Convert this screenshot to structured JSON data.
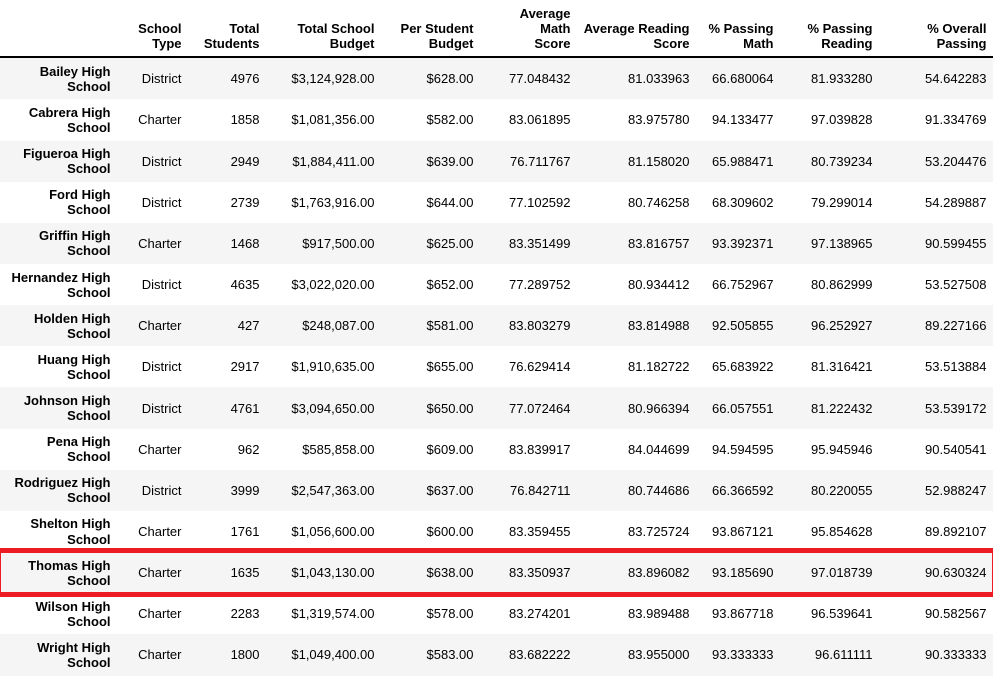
{
  "table": {
    "corner_label": "",
    "highlight_color": "#ed1c24",
    "stripe_color": "#f5f5f5",
    "columns": [
      "School\nType",
      "Total\nStudents",
      "Total School\nBudget",
      "Per Student\nBudget",
      "Average Math\nScore",
      "Average Reading\nScore",
      "% Passing\nMath",
      "% Passing\nReading",
      "% Overall\nPassing"
    ],
    "rows": [
      {
        "name": "Bailey High\nSchool",
        "highlighted": false,
        "values": [
          "District",
          "4976",
          "$3,124,928.00",
          "$628.00",
          "77.048432",
          "81.033963",
          "66.680064",
          "81.933280",
          "54.642283"
        ]
      },
      {
        "name": "Cabrera High\nSchool",
        "highlighted": false,
        "values": [
          "Charter",
          "1858",
          "$1,081,356.00",
          "$582.00",
          "83.061895",
          "83.975780",
          "94.133477",
          "97.039828",
          "91.334769"
        ]
      },
      {
        "name": "Figueroa High\nSchool",
        "highlighted": false,
        "values": [
          "District",
          "2949",
          "$1,884,411.00",
          "$639.00",
          "76.711767",
          "81.158020",
          "65.988471",
          "80.739234",
          "53.204476"
        ]
      },
      {
        "name": "Ford High School",
        "highlighted": false,
        "values": [
          "District",
          "2739",
          "$1,763,916.00",
          "$644.00",
          "77.102592",
          "80.746258",
          "68.309602",
          "79.299014",
          "54.289887"
        ]
      },
      {
        "name": "Griffin High\nSchool",
        "highlighted": false,
        "values": [
          "Charter",
          "1468",
          "$917,500.00",
          "$625.00",
          "83.351499",
          "83.816757",
          "93.392371",
          "97.138965",
          "90.599455"
        ]
      },
      {
        "name": "Hernandez High\nSchool",
        "highlighted": false,
        "values": [
          "District",
          "4635",
          "$3,022,020.00",
          "$652.00",
          "77.289752",
          "80.934412",
          "66.752967",
          "80.862999",
          "53.527508"
        ]
      },
      {
        "name": "Holden High\nSchool",
        "highlighted": false,
        "values": [
          "Charter",
          "427",
          "$248,087.00",
          "$581.00",
          "83.803279",
          "83.814988",
          "92.505855",
          "96.252927",
          "89.227166"
        ]
      },
      {
        "name": "Huang High\nSchool",
        "highlighted": false,
        "values": [
          "District",
          "2917",
          "$1,910,635.00",
          "$655.00",
          "76.629414",
          "81.182722",
          "65.683922",
          "81.316421",
          "53.513884"
        ]
      },
      {
        "name": "Johnson High\nSchool",
        "highlighted": false,
        "values": [
          "District",
          "4761",
          "$3,094,650.00",
          "$650.00",
          "77.072464",
          "80.966394",
          "66.057551",
          "81.222432",
          "53.539172"
        ]
      },
      {
        "name": "Pena High School",
        "highlighted": false,
        "values": [
          "Charter",
          "962",
          "$585,858.00",
          "$609.00",
          "83.839917",
          "84.044699",
          "94.594595",
          "95.945946",
          "90.540541"
        ]
      },
      {
        "name": "Rodriguez High\nSchool",
        "highlighted": false,
        "values": [
          "District",
          "3999",
          "$2,547,363.00",
          "$637.00",
          "76.842711",
          "80.744686",
          "66.366592",
          "80.220055",
          "52.988247"
        ]
      },
      {
        "name": "Shelton High\nSchool",
        "highlighted": false,
        "values": [
          "Charter",
          "1761",
          "$1,056,600.00",
          "$600.00",
          "83.359455",
          "83.725724",
          "93.867121",
          "95.854628",
          "89.892107"
        ]
      },
      {
        "name": "Thomas High\nSchool",
        "highlighted": true,
        "values": [
          "Charter",
          "1635",
          "$1,043,130.00",
          "$638.00",
          "83.350937",
          "83.896082",
          "93.185690",
          "97.018739",
          "90.630324"
        ]
      },
      {
        "name": "Wilson High\nSchool",
        "highlighted": false,
        "values": [
          "Charter",
          "2283",
          "$1,319,574.00",
          "$578.00",
          "83.274201",
          "83.989488",
          "93.867718",
          "96.539641",
          "90.582567"
        ]
      },
      {
        "name": "Wright High\nSchool",
        "highlighted": false,
        "values": [
          "Charter",
          "1800",
          "$1,049,400.00",
          "$583.00",
          "83.682222",
          "83.955000",
          "93.333333",
          "96.611111",
          "90.333333"
        ]
      }
    ]
  }
}
